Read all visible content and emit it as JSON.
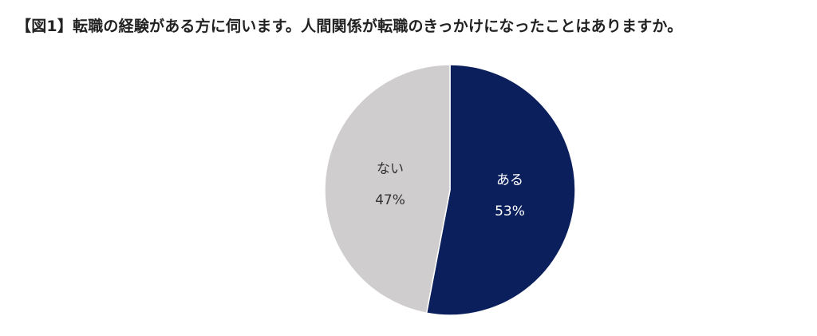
{
  "page": {
    "title": "【図1】転職の経験がある方に伺います。人間関係が転職のきっかけになったことはありますか。"
  },
  "chart_data": {
    "type": "pie",
    "title": "【図1】転職の経験がある方に伺います。人間関係が転職のきっかけになったことはありますか。",
    "slices": [
      {
        "label": "ある",
        "value": 53,
        "display": "53%",
        "color": "#0b1f5c",
        "text_color": "#ffffff"
      },
      {
        "label": "ない",
        "value": 47,
        "display": "47%",
        "color": "#cfcdce",
        "text_color": "#333333"
      }
    ],
    "start": "12 o'clock",
    "direction": "clockwise",
    "legend": "none"
  }
}
